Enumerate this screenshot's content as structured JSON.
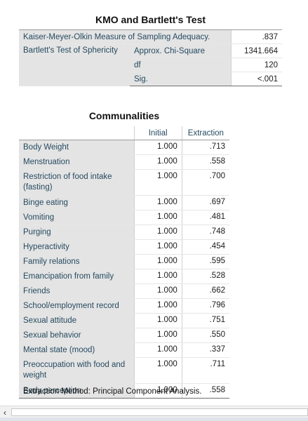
{
  "kmo": {
    "title": "KMO and Bartlett's Test",
    "kmo_label": "Kaiser-Meyer-Olkin Measure of Sampling Adequacy.",
    "kmo_value": ".837",
    "bartlett_label": "Bartlett's Test of Sphericity",
    "rows": [
      {
        "label": "Approx. Chi-Square",
        "value": "1341.664"
      },
      {
        "label": "df",
        "value": "120"
      },
      {
        "label": "Sig.",
        "value": "<.001"
      }
    ]
  },
  "communalities": {
    "title": "Communalities",
    "headers": [
      "Initial",
      "Extraction"
    ],
    "rows": [
      {
        "variable": "Body Weight",
        "initial": "1.000",
        "extraction": ".713"
      },
      {
        "variable": "Menstruation",
        "initial": "1.000",
        "extraction": ".558"
      },
      {
        "variable": "Restriction of food intake (fasting)",
        "initial": "1.000",
        "extraction": ".700"
      },
      {
        "variable": "Binge eating",
        "initial": "1.000",
        "extraction": ".697"
      },
      {
        "variable": "Vomiting",
        "initial": "1.000",
        "extraction": ".481"
      },
      {
        "variable": "Purging",
        "initial": "1.000",
        "extraction": ".748"
      },
      {
        "variable": "Hyperactivity",
        "initial": "1.000",
        "extraction": ".454"
      },
      {
        "variable": "Family relations",
        "initial": "1.000",
        "extraction": ".595"
      },
      {
        "variable": "Emancipation from family",
        "initial": "1.000",
        "extraction": ".528"
      },
      {
        "variable": "Friends",
        "initial": "1.000",
        "extraction": ".662"
      },
      {
        "variable": "School/employment record",
        "initial": "1.000",
        "extraction": ".796"
      },
      {
        "variable": "Sexual attitude",
        "initial": "1.000",
        "extraction": ".751"
      },
      {
        "variable": "Sexual behavior",
        "initial": "1.000",
        "extraction": ".550"
      },
      {
        "variable": "Mental state (mood)",
        "initial": "1.000",
        "extraction": ".337"
      },
      {
        "variable": "Preoccupation with food and weight",
        "initial": "1.000",
        "extraction": ".711"
      },
      {
        "variable": "Body perception",
        "initial": "1.000",
        "extraction": ".558"
      }
    ],
    "footnote": "Extraction Method: Principal Component Analysis."
  },
  "scrollbar": {
    "left_arrow_icon": "chevron-left-icon"
  }
}
